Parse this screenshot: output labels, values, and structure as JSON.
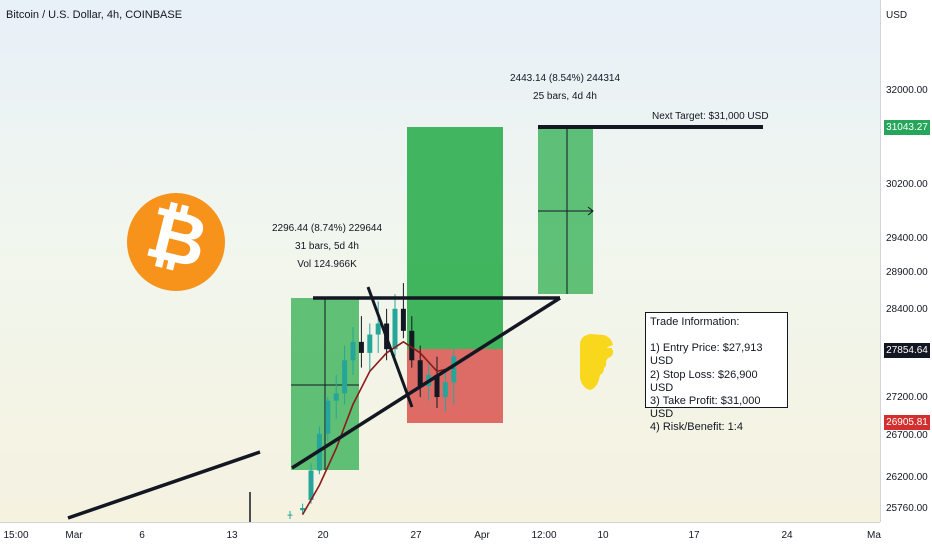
{
  "header": {
    "symbol": "Bitcoin / U.S. Dollar, 4h, COINBASE"
  },
  "price_axis": {
    "unit": "USD",
    "ticks": [
      "32000.00",
      "30200.00",
      "29400.00",
      "28900.00",
      "28400.00",
      "27200.00",
      "26700.00",
      "26200.00",
      "25760.00"
    ],
    "badges": {
      "target": {
        "value": "31043.27",
        "color": "#26a65b"
      },
      "current": {
        "value": "27854.64",
        "color": "#131722"
      },
      "stop": {
        "value": "26905.81",
        "color": "#d32f2f"
      }
    }
  },
  "time_axis": {
    "ticks": [
      "15:00",
      "Mar",
      "6",
      "13",
      "20",
      "27",
      "Apr",
      "12:00",
      "10",
      "17",
      "24",
      "Ma"
    ]
  },
  "measure_left": {
    "line1": "2296.44 (8.74%) 229644",
    "line2": "31 bars, 5d 4h",
    "line3": "Vol 124.966K"
  },
  "measure_right": {
    "line1": "2443.14 (8.54%) 244314",
    "line2": "25 bars, 4d 4h"
  },
  "target_label": "Next Target: $31,000 USD",
  "trade_info": {
    "title": "Trade Information:",
    "lines": [
      "1) Entry Price: $27,913 USD",
      "2) Stop Loss: $26,900 USD",
      "3) Take Profit: $31,000 USD",
      "4) Risk/Benefit: 1:4"
    ]
  },
  "icons": {
    "logo": "bitcoin-logo",
    "pointer": "pointing-hand-icon"
  },
  "colors": {
    "bitcoin_orange": "#f7931a",
    "profit_zone": "#2eae4f",
    "loss_zone": "#d9534f",
    "up_candle": "#26a69a",
    "down_candle": "#131722"
  },
  "chart_data": {
    "type": "candlestick",
    "title": "Bitcoin / U.S. Dollar, 4h, COINBASE",
    "ylabel": "USD",
    "ylim": [
      25600,
      32700
    ],
    "trade_setup": {
      "entry": 27913,
      "stop_loss": 26900,
      "take_profit": 31000,
      "risk_benefit": "1:4"
    },
    "candles": [
      [
        20,
        25700,
        25750,
        25640,
        25700
      ],
      [
        20.6,
        25760,
        25850,
        25700,
        25790
      ],
      [
        21,
        25900,
        26400,
        25850,
        26300
      ],
      [
        21.4,
        26300,
        26900,
        26250,
        26800
      ],
      [
        21.8,
        26800,
        27300,
        26700,
        27250
      ],
      [
        22.2,
        27250,
        27600,
        27000,
        27350
      ],
      [
        22.6,
        27350,
        28000,
        27200,
        27800
      ],
      [
        23,
        27800,
        28250,
        27600,
        28050
      ],
      [
        23.4,
        28050,
        28400,
        27700,
        27900
      ],
      [
        23.8,
        27900,
        28300,
        27650,
        28150
      ],
      [
        24.2,
        28150,
        28600,
        27900,
        28300
      ],
      [
        24.6,
        28300,
        28500,
        27800,
        27950
      ],
      [
        25,
        27950,
        28700,
        27850,
        28500
      ],
      [
        25.4,
        28500,
        28850,
        28100,
        28200
      ],
      [
        25.8,
        28200,
        28400,
        27700,
        27800
      ],
      [
        26.2,
        27800,
        28000,
        27300,
        27450
      ],
      [
        26.6,
        27450,
        27750,
        27250,
        27600
      ],
      [
        27,
        27600,
        27850,
        27150,
        27300
      ],
      [
        27.4,
        27300,
        27700,
        27100,
        27500
      ],
      [
        27.8,
        27500,
        27950,
        27200,
        27854
      ]
    ],
    "moving_average": [
      [
        20.6,
        25700
      ],
      [
        21.4,
        26100
      ],
      [
        22.2,
        26600
      ],
      [
        23,
        27200
      ],
      [
        23.8,
        27650
      ],
      [
        24.6,
        27900
      ],
      [
        25.4,
        28050
      ],
      [
        26.2,
        27900
      ],
      [
        27,
        27650
      ],
      [
        27.8,
        27700
      ]
    ]
  }
}
